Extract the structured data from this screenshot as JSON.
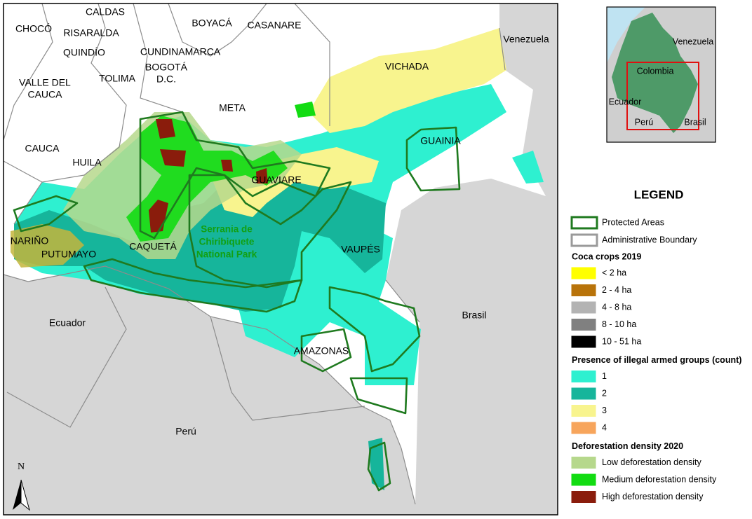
{
  "map": {
    "labels": [
      {
        "lines": [
          "CHOCÓ"
        ]
      },
      {
        "lines": [
          "CALDAS"
        ]
      },
      {
        "lines": [
          "RISARALDA"
        ]
      },
      {
        "lines": [
          "QUINDÍO"
        ]
      },
      {
        "lines": [
          "BOYACÁ"
        ]
      },
      {
        "lines": [
          "CASANARE"
        ]
      },
      {
        "lines": [
          "CUNDINAMARCA"
        ]
      },
      {
        "lines": [
          "BOGOTÁ",
          "D.C."
        ]
      },
      {
        "lines": [
          "VALLE DEL",
          "CAUCA"
        ]
      },
      {
        "lines": [
          "TOLIMA"
        ]
      },
      {
        "lines": [
          "META"
        ]
      },
      {
        "lines": [
          "VICHADA"
        ]
      },
      {
        "lines": [
          "Venezuela"
        ]
      },
      {
        "lines": [
          "CAUCA"
        ]
      },
      {
        "lines": [
          "HUILA"
        ]
      },
      {
        "lines": [
          "GUAINIA"
        ]
      },
      {
        "lines": [
          "GUAVIARE"
        ]
      },
      {
        "lines": [
          "NARIÑO"
        ]
      },
      {
        "lines": [
          "PUTUMAYO"
        ]
      },
      {
        "lines": [
          "CAQUETÁ"
        ]
      },
      {
        "lines": [
          "Serrania de",
          "Chiribiquete",
          "National Park"
        ]
      },
      {
        "lines": [
          "VAUPÉS"
        ]
      },
      {
        "lines": [
          "Brasil"
        ]
      },
      {
        "lines": [
          "Ecuador"
        ]
      },
      {
        "lines": [
          "AMAZONAS"
        ]
      },
      {
        "lines": [
          "Perú"
        ]
      }
    ],
    "north": "N"
  },
  "inset": {
    "labels": [
      "Venezuela",
      "Colombia",
      "Ecuador",
      "Perú",
      "Brasil"
    ]
  },
  "legend": {
    "title": "LEGEND",
    "boundaries": [
      {
        "label": "Protected Areas",
        "color": "#1f7a1f"
      },
      {
        "label": "Administrative Boundary",
        "color": "#9a9a9a"
      }
    ],
    "sections": [
      {
        "title": "Coca crops 2019",
        "items": [
          {
            "label": "< 2 ha",
            "color": "#ffff00"
          },
          {
            "label": "2 - 4 ha",
            "color": "#b8730a"
          },
          {
            "label": "4 - 8 ha",
            "color": "#b3b3b3"
          },
          {
            "label": "8 - 10 ha",
            "color": "#808080"
          },
          {
            "label": "10 - 51 ha",
            "color": "#000000"
          }
        ]
      },
      {
        "title": "Presence of illegal armed groups (count)",
        "items": [
          {
            "label": "1",
            "color": "#2ef0d0"
          },
          {
            "label": "2",
            "color": "#16b59b"
          },
          {
            "label": "3",
            "color": "#f8f48e"
          },
          {
            "label": "4",
            "color": "#f7a55c"
          }
        ]
      },
      {
        "title": "Deforestation density 2020",
        "items": [
          {
            "label": "Low deforestation density",
            "color": "#b6d88c"
          },
          {
            "label": "Medium deforestation density",
            "color": "#12dc12"
          },
          {
            "label": "High deforestation density",
            "color": "#8a1c0c"
          }
        ]
      }
    ]
  }
}
